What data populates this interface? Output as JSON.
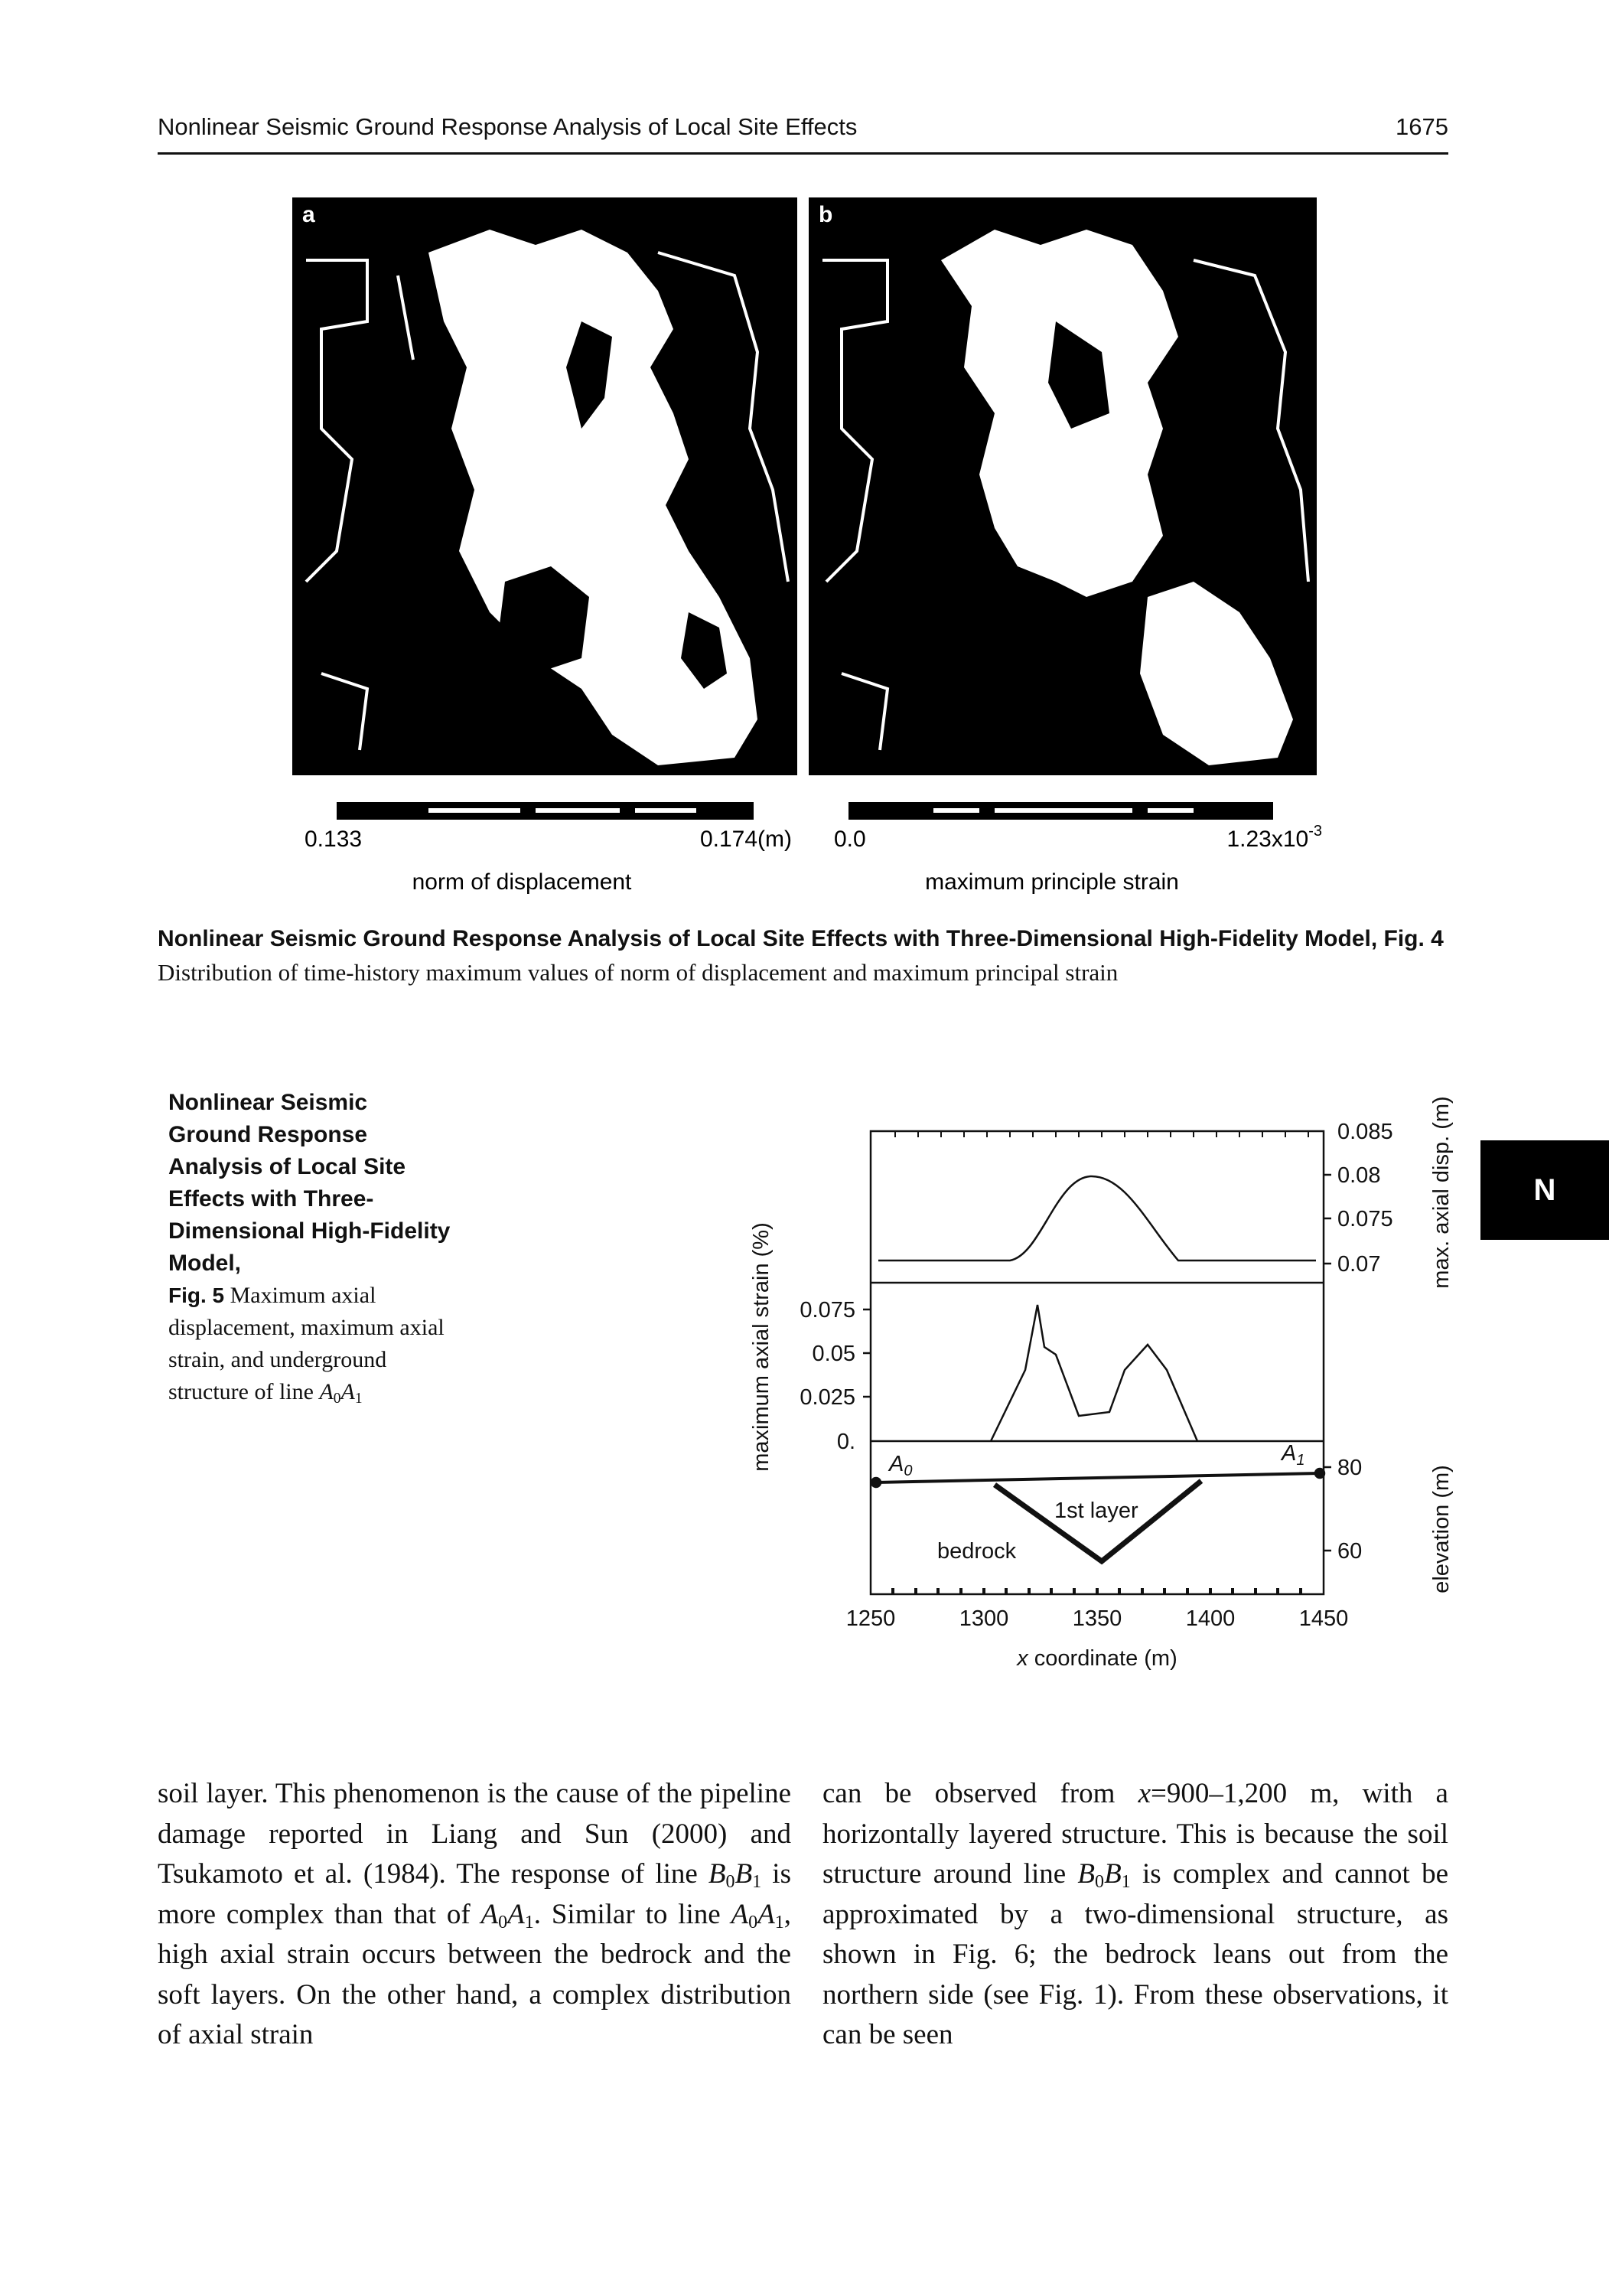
{
  "header": {
    "title": "Nonlinear Seismic Ground Response Analysis of Local Site Effects",
    "page": "1675"
  },
  "figure4": {
    "panel_a": "a",
    "panel_b": "b",
    "colorbar_a": {
      "min": "0.133",
      "max": "0.174(m)",
      "label": "norm of displacement"
    },
    "colorbar_b": {
      "min": "0.0",
      "max": [
        "1.23x10",
        "-3"
      ],
      "label": "maximum principle strain"
    },
    "caption": {
      "bold": "Nonlinear Seismic Ground Response Analysis of Local Site Effects with Three-Dimensional High-Fidelity Model, Fig. 4",
      "text": "Distribution of time-history maximum values of norm of displacement and maximum principal strain"
    }
  },
  "tab": "N",
  "figure5": {
    "caption": {
      "bold": "Nonlinear Seismic Ground Response Analysis of Local Site Effects with Three-Dimensional High-Fidelity Model,",
      "fig": "Fig. 5",
      "text": [
        "Maximum axial displacement, maximum axial strain, and underground structure of line ",
        "A",
        "0",
        "A",
        "1"
      ]
    },
    "y_left_label": "maximum axial strain (%)",
    "y_left_ticks": [
      "0.075",
      "0.05",
      "0.025",
      "0."
    ],
    "y_right_top_label": "max. axial disp. (m)",
    "y_right_top_ticks": [
      "0.085",
      "0.08",
      "0.075",
      "0.07"
    ],
    "y_right_bottom_label": "elevation (m)",
    "y_right_bottom_ticks": [
      "80",
      "60"
    ],
    "x_ticks": [
      "1250",
      "1300",
      "1350",
      "1400",
      "1450"
    ],
    "x_label": [
      "x",
      " coordinate (m)"
    ],
    "point_a0": [
      "A",
      "0"
    ],
    "point_a1": [
      "A",
      "1"
    ],
    "layer_label": "1st layer",
    "bedrock_label": "bedrock"
  },
  "body": {
    "column1": [
      "soil layer. This phenomenon is the cause of the pipeline damage reported in Liang and Sun (2000) and Tsukamoto et al. (1984). The response of line ",
      "B",
      "0",
      "B",
      "1",
      " is more complex than that of ",
      "A",
      "0",
      "A",
      "1",
      ". Similar to line ",
      "A",
      "0",
      "A",
      "1",
      ", high axial strain occurs between the bedrock and the soft layers. On the other hand, a complex distribution of axial strain"
    ],
    "column2": [
      "can be observed from ",
      "x",
      "=900–1,200 m, with a horizontally layered structure. This is because the soil structure around line ",
      "B",
      "0",
      "B",
      "1",
      " is complex and cannot be approximated by a two-dimensional structure, as shown in Fig. 6; the bedrock leans out from the northern side (see Fig. 1). From these observations, it can be seen"
    ]
  }
}
